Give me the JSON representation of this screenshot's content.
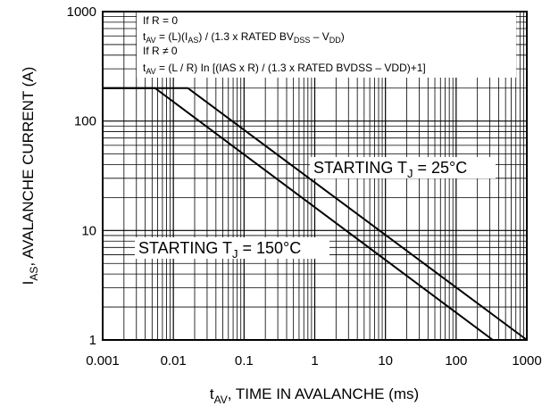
{
  "chart_data": {
    "type": "line",
    "xscale": "log",
    "yscale": "log",
    "xlim": [
      0.001,
      1000
    ],
    "ylim": [
      1,
      1000
    ],
    "xticks": [
      {
        "value": 0.001,
        "label": "0.001"
      },
      {
        "value": 0.01,
        "label": "0.01"
      },
      {
        "value": 0.1,
        "label": "0.1"
      },
      {
        "value": 1,
        "label": "1"
      },
      {
        "value": 10,
        "label": "10"
      },
      {
        "value": 100,
        "label": "100"
      },
      {
        "value": 1000,
        "label": "1000"
      }
    ],
    "yticks": [
      {
        "value": 1,
        "label": "1"
      },
      {
        "value": 10,
        "label": "10"
      },
      {
        "value": 100,
        "label": "100"
      },
      {
        "value": 1000,
        "label": "1000"
      }
    ],
    "xlabel": {
      "main": "t",
      "sub": "AV",
      "rest": ", TIME IN AVALANCHE (ms)"
    },
    "ylabel": {
      "main": "I",
      "sub": "AS",
      "rest": ", AVALANCHE CURRENT (A)"
    },
    "grid": true,
    "series": [
      {
        "name": "STARTING TJ = 25°C",
        "x": [
          0.001,
          0.016,
          1000
        ],
        "y": [
          200,
          200,
          1
        ]
      },
      {
        "name": "STARTING TJ = 150°C",
        "x": [
          0.001,
          0.0055,
          330
        ],
        "y": [
          200,
          200,
          1
        ]
      }
    ],
    "series_labels": [
      {
        "main": "STARTING T",
        "sub": "J",
        "rest": " = 25°C"
      },
      {
        "main": "STARTING T",
        "sub": "J",
        "rest": " = 150°C"
      }
    ],
    "annotations": {
      "line1": "If R = 0",
      "line2": {
        "t1": "t",
        "s1": "AV",
        "t2": " = (L)(I",
        "s2": "AS",
        "t3": ") / (1.3 x RATED BV",
        "s3": "DSS",
        "t4": " – V",
        "s4": "DD",
        "t5": ")"
      },
      "line3": "If R ≠ 0",
      "line4": {
        "t1": "t",
        "s1": "AV",
        "t2": " = (L / R) In [(IAS x R) / (1.3 x RATED BVDSS – VDD)+1]"
      }
    },
    "colors": {
      "line": "#000000",
      "grid": "#000000",
      "background": "#ffffff"
    }
  }
}
